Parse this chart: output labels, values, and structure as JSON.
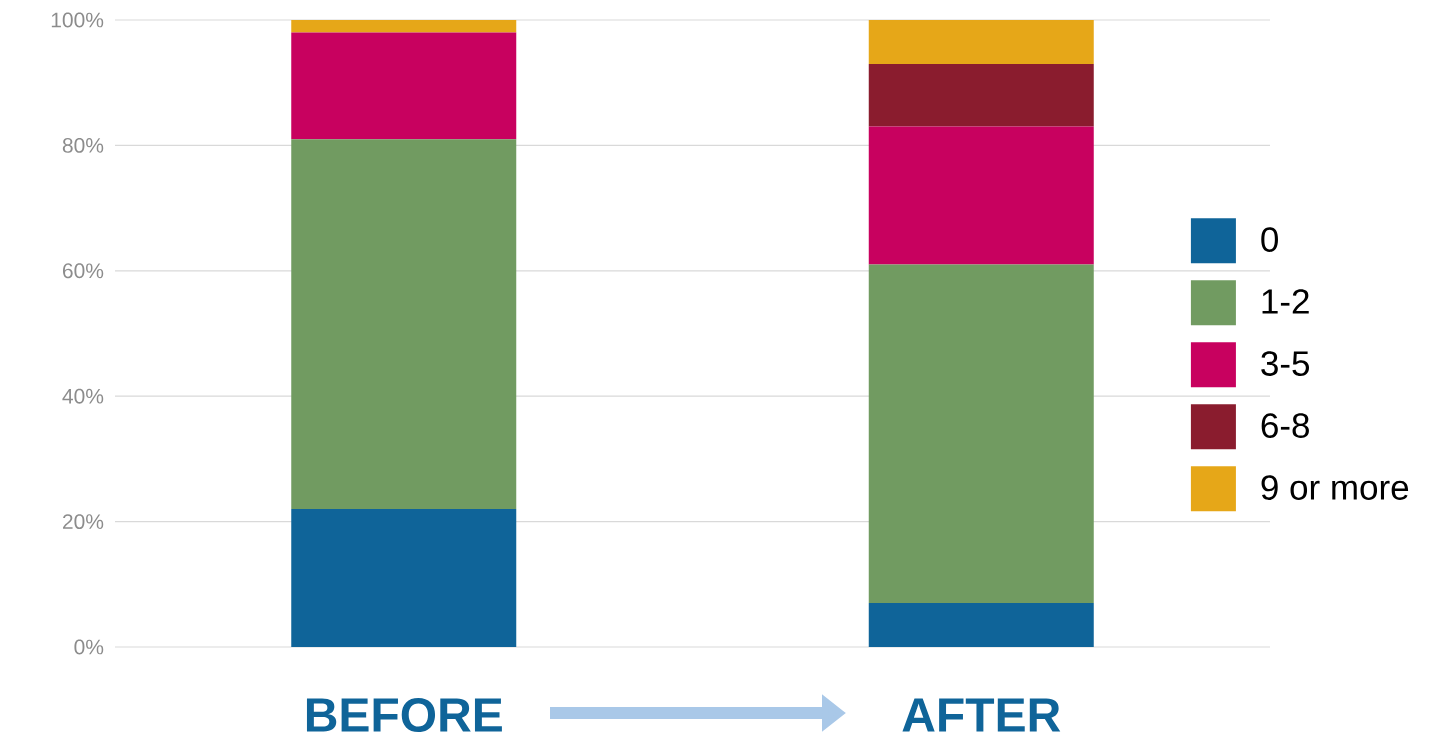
{
  "chart_data": {
    "type": "bar",
    "stacked": true,
    "categories": [
      "BEFORE",
      "AFTER"
    ],
    "series": [
      {
        "name": "0",
        "color": "#0f6499",
        "values": [
          22,
          7
        ]
      },
      {
        "name": "1-2",
        "color": "#719b61",
        "values": [
          59,
          54
        ]
      },
      {
        "name": "3-5",
        "color": "#c8015f",
        "values": [
          17,
          22
        ]
      },
      {
        "name": "6-8",
        "color": "#8a1c2e",
        "values": [
          0,
          10
        ]
      },
      {
        "name": "9 or more",
        "color": "#e6a718",
        "values": [
          2,
          7
        ]
      }
    ],
    "ylim": [
      0,
      100
    ],
    "yticks": [
      {
        "value": 0,
        "label": "0%"
      },
      {
        "value": 20,
        "label": "20%"
      },
      {
        "value": 40,
        "label": "40%"
      },
      {
        "value": 60,
        "label": "60%"
      },
      {
        "value": 80,
        "label": "80%"
      },
      {
        "value": 100,
        "label": "100%"
      }
    ],
    "grid": "y",
    "legend": "right"
  }
}
